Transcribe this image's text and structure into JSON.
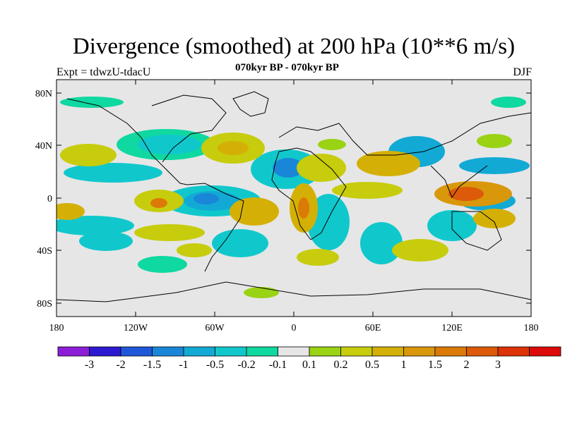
{
  "header": {
    "title": "Divergence (smoothed) at 200 hPa (10**6 m/s)",
    "subtitle": "070kyr BP - 070kyr BP",
    "left_label": "Expt = tdwzU-tdacU",
    "right_label": "DJF"
  },
  "map": {
    "background_color": "#e6e6e6",
    "lat_ticks": [
      "80N",
      "40N",
      "0",
      "40S",
      "80S"
    ],
    "lon_ticks": [
      "180",
      "120W",
      "60W",
      "0",
      "60E",
      "120E",
      "180"
    ]
  },
  "colorbar": {
    "colors": [
      "#8b1ed6",
      "#2d18d2",
      "#1f57d9",
      "#1a86d8",
      "#12aad5",
      "#10c8cc",
      "#0fd8a0",
      "#e6e6e6",
      "#9ad214",
      "#c7cc0c",
      "#d4b006",
      "#d9970a",
      "#db7a07",
      "#dc5a09",
      "#dd3108",
      "#dc0a0a"
    ],
    "labels": [
      "-3",
      "-2",
      "-1.5",
      "-1",
      "-0.5",
      "-0.2",
      "-0.1",
      "0.1",
      "0.2",
      "0.5",
      "1",
      "1.5",
      "2",
      "3"
    ]
  }
}
